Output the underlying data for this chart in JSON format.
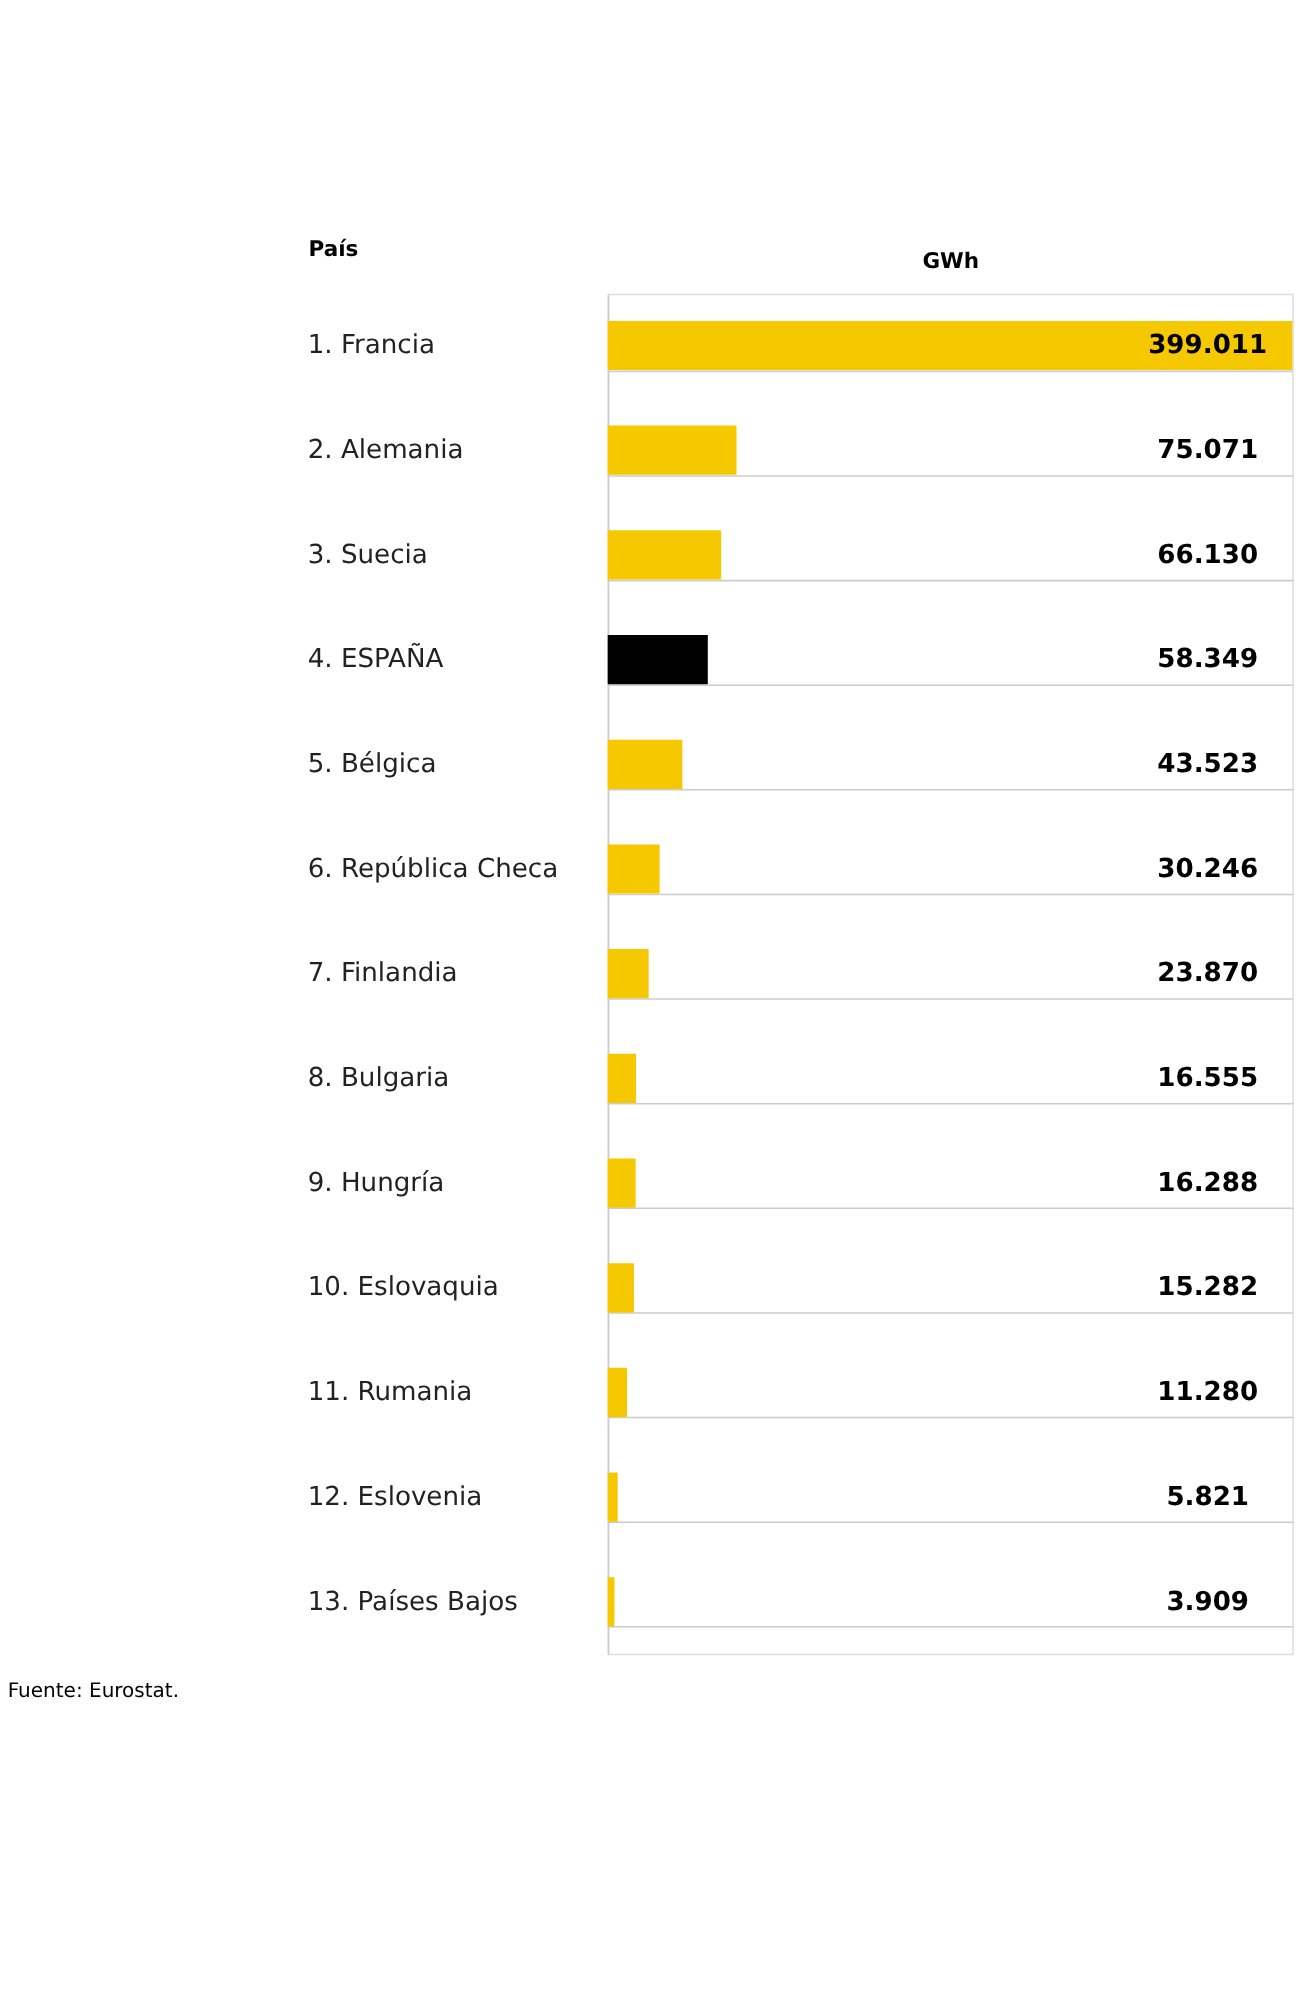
{
  "chart_data": {
    "type": "bar",
    "orientation": "horizontal",
    "xlabel": "GWh",
    "ylabel": "País",
    "categories": [
      "1. Francia",
      "2. Alemania",
      "3. Suecia",
      "4. ESPAÑA",
      "5. Bélgica",
      "6. República Checa",
      "7. Finlandia",
      "8. Bulgaria",
      "9. Hungría",
      "10. Eslovaquia",
      "11. Rumania",
      "12. Eslovenia",
      "13. Países Bajos"
    ],
    "values": [
      399011,
      75071,
      66130,
      58349,
      43523,
      30246,
      23870,
      16555,
      16288,
      15282,
      11280,
      5821,
      3909
    ],
    "value_labels": [
      "399.011",
      "75.071",
      "66.130",
      "58.349",
      "43.523",
      "30.246",
      "23.870",
      "16.555",
      "16.288",
      "15.282",
      "11.280",
      "5.821",
      "3.909"
    ],
    "colors": [
      "#f5c800",
      "#f5c800",
      "#f5c800",
      "#000000",
      "#f5c800",
      "#f5c800",
      "#f5c800",
      "#f5c800",
      "#f5c800",
      "#f5c800",
      "#f5c800",
      "#f5c800",
      "#f5c800"
    ],
    "grid": "y",
    "annotations": [
      "Fuente: Eurostat."
    ]
  }
}
